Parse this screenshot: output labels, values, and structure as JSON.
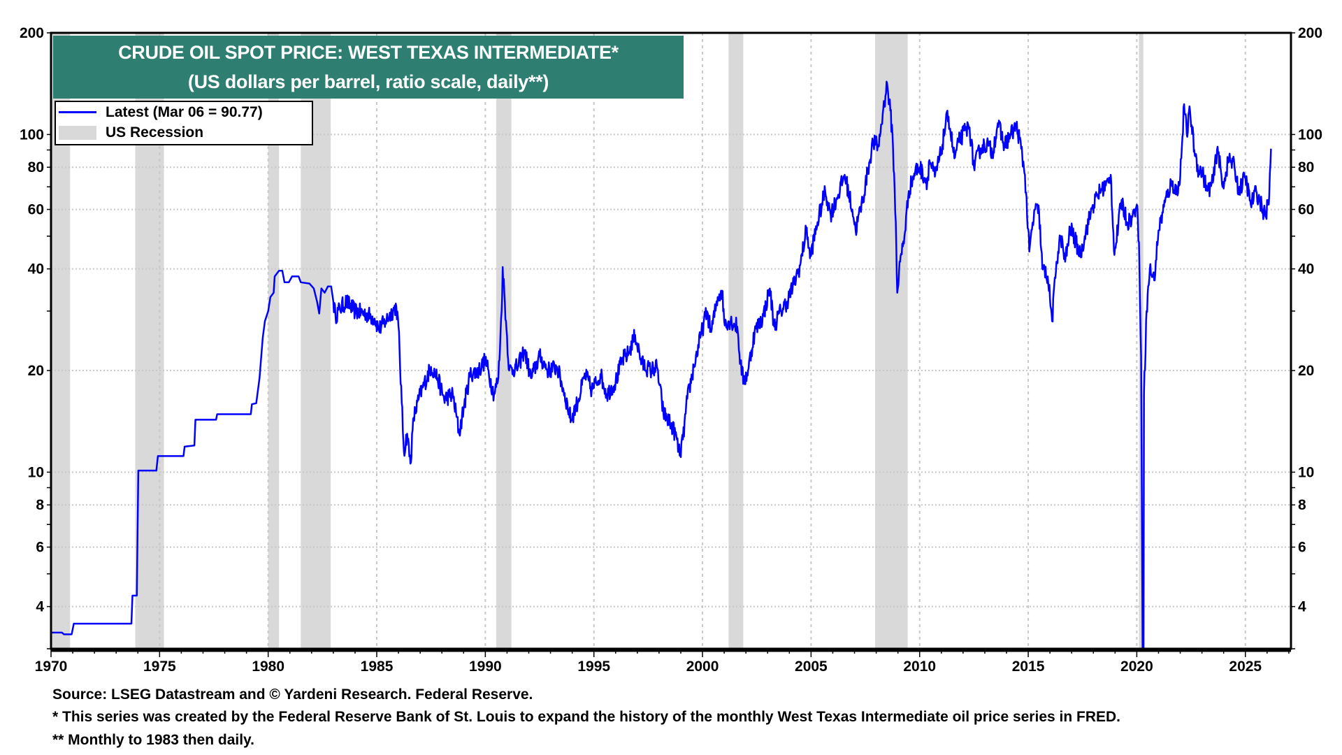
{
  "chart_data": {
    "type": "line",
    "title": "CRUDE OIL SPOT PRICE: WEST TEXAS INTERMEDIATE*",
    "subtitle": "(US dollars per barrel, ratio scale, daily**)",
    "xlabel": "",
    "ylabel": "",
    "xlim": [
      1970,
      2027.1
    ],
    "ylim": [
      3,
      200
    ],
    "yscale": "log",
    "grid": true,
    "legend_position": "top-left",
    "x_ticks": [
      "1970",
      "1975",
      "1980",
      "1985",
      "1990",
      "1995",
      "2000",
      "2005",
      "2010",
      "2015",
      "2020",
      "2025"
    ],
    "y_ticks": [
      "4",
      "6",
      "8",
      "10",
      "20",
      "40",
      "60",
      "80",
      "100",
      "200"
    ],
    "legend": {
      "latest": "Latest (Mar 06 = 90.77)",
      "recession": "US Recession"
    },
    "colors": {
      "series": "#0000ff",
      "recession": "#d9d9d9",
      "title_bg": "#2e7f72"
    },
    "recessions": [
      [
        1969.95,
        1970.88
      ],
      [
        1973.88,
        1975.2
      ],
      [
        1980.0,
        1980.5
      ],
      [
        1981.5,
        1982.88
      ],
      [
        1990.5,
        1991.2
      ],
      [
        2001.2,
        2001.88
      ],
      [
        2007.95,
        2009.45
      ],
      [
        2020.1,
        2020.3
      ]
    ],
    "series": [
      {
        "name": "WTI spot price",
        "points": [
          [
            1970.0,
            3.35
          ],
          [
            1970.5,
            3.35
          ],
          [
            1970.6,
            3.31
          ],
          [
            1970.95,
            3.31
          ],
          [
            1971.05,
            3.56
          ],
          [
            1973.7,
            3.56
          ],
          [
            1973.75,
            4.31
          ],
          [
            1973.95,
            4.31
          ],
          [
            1974.02,
            10.11
          ],
          [
            1974.85,
            10.11
          ],
          [
            1974.92,
            11.16
          ],
          [
            1976.1,
            11.16
          ],
          [
            1976.15,
            11.9
          ],
          [
            1976.6,
            12.0
          ],
          [
            1976.65,
            14.3
          ],
          [
            1977.6,
            14.3
          ],
          [
            1977.65,
            14.85
          ],
          [
            1979.2,
            14.85
          ],
          [
            1979.25,
            15.9
          ],
          [
            1979.45,
            16.0
          ],
          [
            1979.6,
            19
          ],
          [
            1979.75,
            25
          ],
          [
            1979.85,
            28
          ],
          [
            1980.0,
            30
          ],
          [
            1980.1,
            33
          ],
          [
            1980.25,
            34
          ],
          [
            1980.3,
            38
          ],
          [
            1980.5,
            39.5
          ],
          [
            1980.65,
            39.5
          ],
          [
            1980.75,
            36.5
          ],
          [
            1980.95,
            36.5
          ],
          [
            1981.1,
            38
          ],
          [
            1981.4,
            38
          ],
          [
            1981.5,
            36.5
          ],
          [
            1981.9,
            36.2
          ],
          [
            1982.1,
            35
          ],
          [
            1982.25,
            32
          ],
          [
            1982.35,
            29.5
          ],
          [
            1982.45,
            35
          ],
          [
            1982.6,
            34
          ],
          [
            1982.75,
            35.5
          ],
          [
            1982.9,
            35.5
          ],
          [
            1983.0,
            32
          ],
          [
            1983.1,
            29
          ],
          [
            1983.3,
            30.5
          ],
          [
            1983.6,
            32
          ],
          [
            1984.0,
            30
          ],
          [
            1984.5,
            29.5
          ],
          [
            1984.9,
            28.5
          ],
          [
            1985.1,
            26.5
          ],
          [
            1985.4,
            28
          ],
          [
            1985.9,
            31
          ],
          [
            1986.0,
            27
          ],
          [
            1986.15,
            16
          ],
          [
            1986.25,
            11.5
          ],
          [
            1986.4,
            13
          ],
          [
            1986.55,
            10.6
          ],
          [
            1986.7,
            14.5
          ],
          [
            1987.0,
            17
          ],
          [
            1987.5,
            20.5
          ],
          [
            1987.8,
            19
          ],
          [
            1988.1,
            16.5
          ],
          [
            1988.5,
            17
          ],
          [
            1988.8,
            13
          ],
          [
            1989.0,
            15.5
          ],
          [
            1989.3,
            19.5
          ],
          [
            1989.7,
            20
          ],
          [
            1990.0,
            21.5
          ],
          [
            1990.4,
            17
          ],
          [
            1990.6,
            19
          ],
          [
            1990.75,
            30
          ],
          [
            1990.8,
            40.5
          ],
          [
            1990.95,
            28
          ],
          [
            1991.1,
            20
          ],
          [
            1991.5,
            20.5
          ],
          [
            1991.8,
            23
          ],
          [
            1992.1,
            19
          ],
          [
            1992.5,
            22
          ],
          [
            1992.9,
            20
          ],
          [
            1993.3,
            20.5
          ],
          [
            1993.6,
            17.5
          ],
          [
            1993.95,
            14.3
          ],
          [
            1994.3,
            16.5
          ],
          [
            1994.6,
            19.5
          ],
          [
            1994.9,
            17.5
          ],
          [
            1995.3,
            19.5
          ],
          [
            1995.6,
            17
          ],
          [
            1996.0,
            18.5
          ],
          [
            1996.3,
            21.5
          ],
          [
            1996.6,
            22.5
          ],
          [
            1996.9,
            25.5
          ],
          [
            1997.2,
            21
          ],
          [
            1997.6,
            20
          ],
          [
            1997.9,
            20.5
          ],
          [
            1998.2,
            15
          ],
          [
            1998.5,
            14
          ],
          [
            1998.75,
            13
          ],
          [
            1998.95,
            11.2
          ],
          [
            1999.1,
            12.5
          ],
          [
            1999.3,
            16.5
          ],
          [
            1999.6,
            20.5
          ],
          [
            1999.9,
            25
          ],
          [
            2000.2,
            30
          ],
          [
            2000.4,
            26
          ],
          [
            2000.7,
            33
          ],
          [
            2000.9,
            34.5
          ],
          [
            2001.0,
            28
          ],
          [
            2001.3,
            28
          ],
          [
            2001.6,
            27
          ],
          [
            2001.75,
            21
          ],
          [
            2001.9,
            18.5
          ],
          [
            2002.1,
            20
          ],
          [
            2002.4,
            26
          ],
          [
            2002.8,
            29
          ],
          [
            2003.1,
            35
          ],
          [
            2003.3,
            27
          ],
          [
            2003.6,
            30
          ],
          [
            2003.9,
            32
          ],
          [
            2004.2,
            36
          ],
          [
            2004.5,
            41
          ],
          [
            2004.8,
            53
          ],
          [
            2004.95,
            43
          ],
          [
            2005.3,
            55
          ],
          [
            2005.65,
            68
          ],
          [
            2005.9,
            58
          ],
          [
            2006.2,
            65
          ],
          [
            2006.55,
            76
          ],
          [
            2006.9,
            60
          ],
          [
            2007.05,
            52
          ],
          [
            2007.4,
            65
          ],
          [
            2007.6,
            77
          ],
          [
            2007.85,
            95
          ],
          [
            2008.1,
            92
          ],
          [
            2008.3,
            115
          ],
          [
            2008.5,
            142
          ],
          [
            2008.6,
            125
          ],
          [
            2008.75,
            100
          ],
          [
            2008.9,
            55
          ],
          [
            2008.97,
            34
          ],
          [
            2009.1,
            42
          ],
          [
            2009.3,
            50
          ],
          [
            2009.5,
            68
          ],
          [
            2009.8,
            78
          ],
          [
            2010.0,
            80
          ],
          [
            2010.35,
            72
          ],
          [
            2010.45,
            84
          ],
          [
            2010.7,
            75
          ],
          [
            2011.0,
            89
          ],
          [
            2011.2,
            108
          ],
          [
            2011.33,
            113
          ],
          [
            2011.6,
            85
          ],
          [
            2011.8,
            95
          ],
          [
            2012.1,
            103
          ],
          [
            2012.3,
            105
          ],
          [
            2012.5,
            80
          ],
          [
            2012.8,
            91
          ],
          [
            2013.1,
            94
          ],
          [
            2013.35,
            88
          ],
          [
            2013.6,
            108
          ],
          [
            2013.9,
            93
          ],
          [
            2014.2,
            100
          ],
          [
            2014.45,
            106
          ],
          [
            2014.6,
            97
          ],
          [
            2014.85,
            76
          ],
          [
            2015.05,
            45
          ],
          [
            2015.3,
            60
          ],
          [
            2015.5,
            59
          ],
          [
            2015.65,
            40
          ],
          [
            2015.9,
            38
          ],
          [
            2016.1,
            28
          ],
          [
            2016.3,
            42
          ],
          [
            2016.5,
            50
          ],
          [
            2016.7,
            42
          ],
          [
            2016.95,
            53
          ],
          [
            2017.4,
            44
          ],
          [
            2017.6,
            50
          ],
          [
            2017.95,
            61
          ],
          [
            2018.3,
            68
          ],
          [
            2018.7,
            72
          ],
          [
            2018.8,
            76
          ],
          [
            2018.97,
            44
          ],
          [
            2019.3,
            64
          ],
          [
            2019.55,
            55
          ],
          [
            2019.8,
            57
          ],
          [
            2020.0,
            62
          ],
          [
            2020.1,
            48
          ],
          [
            2020.2,
            22
          ],
          [
            2020.3,
            -37.63
          ],
          [
            2020.33,
            17
          ],
          [
            2020.45,
            30
          ],
          [
            2020.6,
            40
          ],
          [
            2020.8,
            37
          ],
          [
            2021.0,
            52
          ],
          [
            2021.3,
            63
          ],
          [
            2021.6,
            72
          ],
          [
            2021.9,
            67
          ],
          [
            2022.05,
            85
          ],
          [
            2022.18,
            123
          ],
          [
            2022.3,
            100
          ],
          [
            2022.45,
            118
          ],
          [
            2022.65,
            90
          ],
          [
            2022.85,
            78
          ],
          [
            2023.0,
            78
          ],
          [
            2023.25,
            68
          ],
          [
            2023.5,
            72
          ],
          [
            2023.72,
            92
          ],
          [
            2023.95,
            70
          ],
          [
            2024.25,
            85
          ],
          [
            2024.5,
            80
          ],
          [
            2024.7,
            68
          ],
          [
            2025.0,
            75
          ],
          [
            2025.25,
            62
          ],
          [
            2025.5,
            68
          ],
          [
            2025.8,
            60
          ],
          [
            2025.95,
            57
          ],
          [
            2026.05,
            64
          ],
          [
            2026.1,
            66
          ],
          [
            2026.18,
            90.77
          ]
        ]
      }
    ]
  },
  "footer": {
    "source": "Source: LSEG Datastream and © Yardeni Research. Federal Reserve.",
    "note1": "* This series was created by the Federal Reserve Bank of St. Louis to expand the history of the monthly West Texas Intermediate oil price series in FRED.",
    "note2": "** Monthly to 1983 then daily."
  }
}
